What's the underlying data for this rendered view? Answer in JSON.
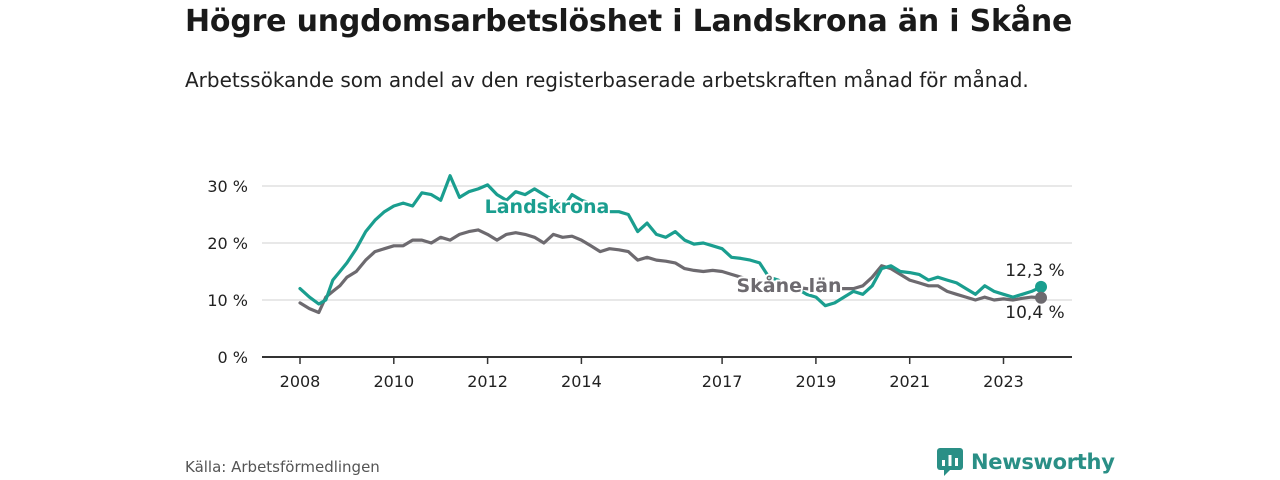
{
  "title": "Högre ungdomsarbetslöshet i Landskrona än i Skåne",
  "subtitle": "Arbetssökande som andel av den registerbaserade arbetskraften månad för månad.",
  "source": "Källa: Arbetsförmedlingen",
  "brand": "Newsworthy",
  "colors": {
    "landskrona": "#1a9e8f",
    "skane": "#6d6a6f",
    "grid": "#d9d9d9",
    "axis": "#333333",
    "brand": "#2a8f86"
  },
  "chart_data": {
    "type": "line",
    "title": "Högre ungdomsarbetslöshet i Landskrona än i Skåne",
    "ylabel": "",
    "xlabel": "",
    "xlim": [
      2008.0,
      2024.0
    ],
    "ylim": [
      0,
      30
    ],
    "yticks": [
      0,
      10,
      20,
      30
    ],
    "ytick_labels": [
      "0 %",
      "10 %",
      "20 %",
      "30 %"
    ],
    "xticks": [
      2008,
      2010,
      2012,
      2014,
      2017,
      2019,
      2021,
      2023
    ],
    "xtick_labels": [
      "2008",
      "2010",
      "2012",
      "2014",
      "2017",
      "2019",
      "2021",
      "2023"
    ],
    "grid": true,
    "series": [
      {
        "name": "Landskrona",
        "end_label": "12,3 %",
        "x": [
          2008.0,
          2008.2,
          2008.4,
          2008.55,
          2008.7,
          2008.85,
          2009.0,
          2009.2,
          2009.4,
          2009.6,
          2009.8,
          2010.0,
          2010.2,
          2010.4,
          2010.6,
          2010.8,
          2011.0,
          2011.2,
          2011.4,
          2011.6,
          2011.8,
          2012.0,
          2012.2,
          2012.4,
          2012.6,
          2012.8,
          2013.0,
          2013.2,
          2013.4,
          2013.6,
          2013.8,
          2014.0,
          2014.2,
          2014.4,
          2014.6,
          2014.8,
          2015.0,
          2015.2,
          2015.4,
          2015.6,
          2015.8,
          2016.0,
          2016.2,
          2016.4,
          2016.6,
          2016.8,
          2017.0,
          2017.2,
          2017.4,
          2017.6,
          2017.8,
          2018.0,
          2018.2,
          2018.4,
          2018.6,
          2018.8,
          2019.0,
          2019.2,
          2019.4,
          2019.6,
          2019.8,
          2020.0,
          2020.2,
          2020.4,
          2020.6,
          2020.8,
          2021.0,
          2021.2,
          2021.4,
          2021.6,
          2021.8,
          2022.0,
          2022.2,
          2022.4,
          2022.6,
          2022.8,
          2023.0,
          2023.2,
          2023.4,
          2023.6,
          2023.8
        ],
        "values": [
          12.0,
          10.5,
          9.3,
          10.0,
          13.5,
          15.0,
          16.5,
          19.0,
          22.0,
          24.0,
          25.5,
          26.5,
          27.0,
          26.5,
          28.8,
          28.5,
          27.5,
          31.8,
          28.0,
          29.0,
          29.5,
          30.2,
          28.5,
          27.5,
          29.0,
          28.5,
          29.5,
          28.5,
          27.5,
          26.0,
          28.5,
          27.5,
          27.0,
          26.0,
          25.5,
          25.5,
          25.0,
          22.0,
          23.5,
          21.5,
          21.0,
          22.0,
          20.5,
          19.8,
          20.0,
          19.5,
          19.0,
          17.5,
          17.3,
          17.0,
          16.5,
          14.0,
          13.5,
          12.5,
          12.0,
          11.0,
          10.5,
          9.0,
          9.5,
          10.5,
          11.5,
          11.0,
          12.5,
          15.5,
          16.0,
          15.0,
          14.8,
          14.5,
          13.5,
          14.0,
          13.5,
          13.0,
          12.0,
          11.0,
          12.5,
          11.5,
          11.0,
          10.5,
          11.0,
          11.5,
          12.3
        ]
      },
      {
        "name": "Skåne län",
        "end_label": "10,4 %",
        "x": [
          2008.0,
          2008.2,
          2008.4,
          2008.55,
          2008.7,
          2008.85,
          2009.0,
          2009.2,
          2009.4,
          2009.6,
          2009.8,
          2010.0,
          2010.2,
          2010.4,
          2010.6,
          2010.8,
          2011.0,
          2011.2,
          2011.4,
          2011.6,
          2011.8,
          2012.0,
          2012.2,
          2012.4,
          2012.6,
          2012.8,
          2013.0,
          2013.2,
          2013.4,
          2013.6,
          2013.8,
          2014.0,
          2014.2,
          2014.4,
          2014.6,
          2014.8,
          2015.0,
          2015.2,
          2015.4,
          2015.6,
          2015.8,
          2016.0,
          2016.2,
          2016.4,
          2016.6,
          2016.8,
          2017.0,
          2017.2,
          2017.4,
          2017.6,
          2017.8,
          2018.0,
          2018.2,
          2018.4,
          2018.6,
          2018.8,
          2019.0,
          2019.2,
          2019.4,
          2019.6,
          2019.8,
          2020.0,
          2020.2,
          2020.4,
          2020.6,
          2020.8,
          2021.0,
          2021.2,
          2021.4,
          2021.6,
          2021.8,
          2022.0,
          2022.2,
          2022.4,
          2022.6,
          2022.8,
          2023.0,
          2023.2,
          2023.4,
          2023.6,
          2023.8
        ],
        "values": [
          9.5,
          8.5,
          7.8,
          10.5,
          11.5,
          12.5,
          14.0,
          15.0,
          17.0,
          18.5,
          19.0,
          19.5,
          19.5,
          20.5,
          20.5,
          20.0,
          21.0,
          20.5,
          21.5,
          22.0,
          22.3,
          21.5,
          20.5,
          21.5,
          21.8,
          21.5,
          21.0,
          20.0,
          21.5,
          21.0,
          21.2,
          20.5,
          19.5,
          18.5,
          19.0,
          18.8,
          18.5,
          17.0,
          17.5,
          17.0,
          16.8,
          16.5,
          15.5,
          15.2,
          15.0,
          15.2,
          15.0,
          14.5,
          14.0,
          13.5,
          13.2,
          13.0,
          12.8,
          12.5,
          12.2,
          12.0,
          11.8,
          11.5,
          12.0,
          12.0,
          12.0,
          12.5,
          14.0,
          16.0,
          15.5,
          14.5,
          13.5,
          13.0,
          12.5,
          12.5,
          11.5,
          11.0,
          10.5,
          10.0,
          10.5,
          10.0,
          10.2,
          10.0,
          10.3,
          10.5,
          10.4
        ]
      }
    ]
  }
}
